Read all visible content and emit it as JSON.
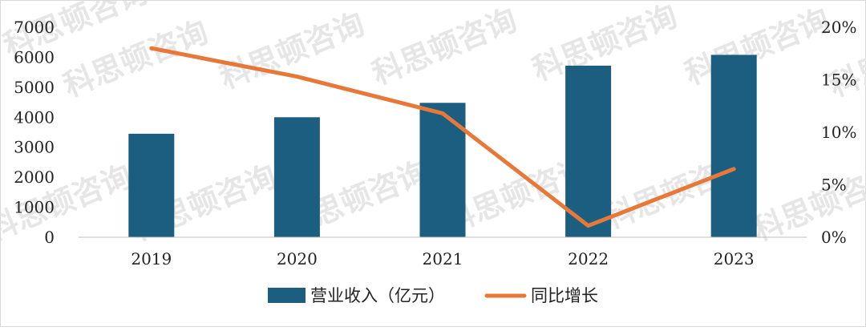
{
  "chart_data": {
    "type": "bar+line",
    "categories": [
      "2019",
      "2020",
      "2021",
      "2022",
      "2023"
    ],
    "series": [
      {
        "name": "营业收入（亿元）",
        "type": "bar",
        "axis": "left",
        "color": "#1b5e80",
        "values": [
          3450,
          4000,
          4480,
          5720,
          6080
        ]
      },
      {
        "name": "同比增长",
        "type": "line",
        "axis": "right",
        "color": "#e8783a",
        "values": [
          18.0,
          15.3,
          11.8,
          1.1,
          6.5
        ]
      }
    ],
    "y_left": {
      "ylim": [
        0,
        7000
      ],
      "ticks": [
        "0",
        "1000",
        "2000",
        "3000",
        "4000",
        "5000",
        "6000",
        "7000"
      ]
    },
    "y_right": {
      "ylim": [
        0,
        20
      ],
      "ticks": [
        "0%",
        "5%",
        "10%",
        "15%",
        "20%"
      ]
    },
    "grid": false,
    "legend_position": "bottom-center",
    "watermark": "科思顿咨询"
  }
}
